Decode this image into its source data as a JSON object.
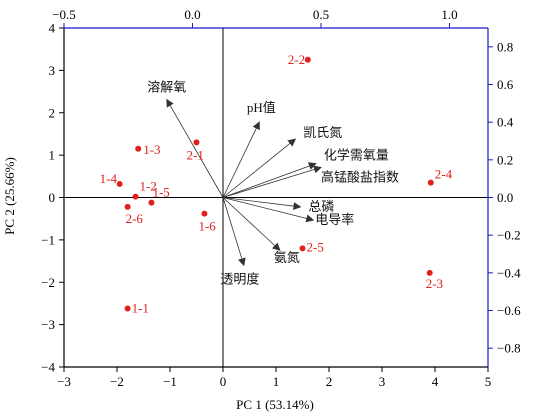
{
  "chart_data": {
    "type": "scatter",
    "title": "",
    "xlabel": "PC 1 (53.14%)",
    "ylabel": "PC 2 (25.66%)",
    "xlim": [
      -3,
      5
    ],
    "ylim": [
      -4,
      4
    ],
    "x_ticks": [
      -3,
      -2,
      -1,
      0,
      1,
      2,
      3,
      4,
      5
    ],
    "y_ticks": [
      -4,
      -3,
      -2,
      -1,
      0,
      1,
      2,
      3,
      4
    ],
    "top_axis": {
      "lim": [
        -0.5,
        1.15
      ],
      "ticks": [
        -0.5,
        0.0,
        0.5,
        1.0
      ],
      "tick_labels": [
        "−0.5",
        "0.0",
        "0.5",
        "1.0"
      ]
    },
    "right_axis": {
      "lim": [
        -0.9,
        0.9
      ],
      "ticks": [
        0.8,
        0.6,
        0.4,
        0.2,
        0.0,
        -0.2,
        -0.4,
        -0.6,
        -0.8
      ],
      "tick_labels": [
        "0.8",
        "0.6",
        "0.4",
        "0.2",
        "0.0",
        "−0.2",
        "−0.4",
        "−0.6",
        "−0.8"
      ]
    },
    "series": [
      {
        "points": [
          {
            "label": "1-1",
            "x": -1.8,
            "y": -2.62
          },
          {
            "label": "1-2",
            "x": -1.65,
            "y": 0.02
          },
          {
            "label": "1-3",
            "x": -1.6,
            "y": 1.15
          },
          {
            "label": "1-4",
            "x": -1.95,
            "y": 0.32
          },
          {
            "label": "1-5",
            "x": -1.35,
            "y": -0.12
          },
          {
            "label": "1-6",
            "x": -0.35,
            "y": -0.38
          },
          {
            "label": "2-1",
            "x": -0.5,
            "y": 1.3
          },
          {
            "label": "2-2",
            "x": 1.6,
            "y": 3.25
          },
          {
            "label": "2-3",
            "x": 3.9,
            "y": -1.78
          },
          {
            "label": "2-4",
            "x": 3.92,
            "y": 0.35
          },
          {
            "label": "2-5",
            "x": 1.5,
            "y": -1.2
          },
          {
            "label": "2-6",
            "x": -1.8,
            "y": -0.22
          }
        ]
      }
    ],
    "loadings": [
      {
        "label": "溶解氧",
        "x": -0.1,
        "y": 0.52
      },
      {
        "label": "pH值",
        "x": 0.26,
        "y": 0.4
      },
      {
        "label": "凯氏氮",
        "x": 0.4,
        "y": 0.31
      },
      {
        "label": "化学需氧量",
        "x": 0.48,
        "y": 0.18
      },
      {
        "label": "高锰酸盐指数",
        "x": 0.5,
        "y": 0.16
      },
      {
        "label": "总磷",
        "x": 0.42,
        "y": -0.05
      },
      {
        "label": "电导率",
        "x": 0.47,
        "y": -0.12
      },
      {
        "label": "氨氮",
        "x": 0.34,
        "y": -0.28
      },
      {
        "label": "透明度",
        "x": 0.2,
        "y": -0.36
      }
    ],
    "colors": {
      "points": "#e0201b",
      "labels": "#e0201b",
      "secondary_axes": "#1a1acc",
      "axes": "#000000",
      "arrows": "#333333"
    }
  }
}
